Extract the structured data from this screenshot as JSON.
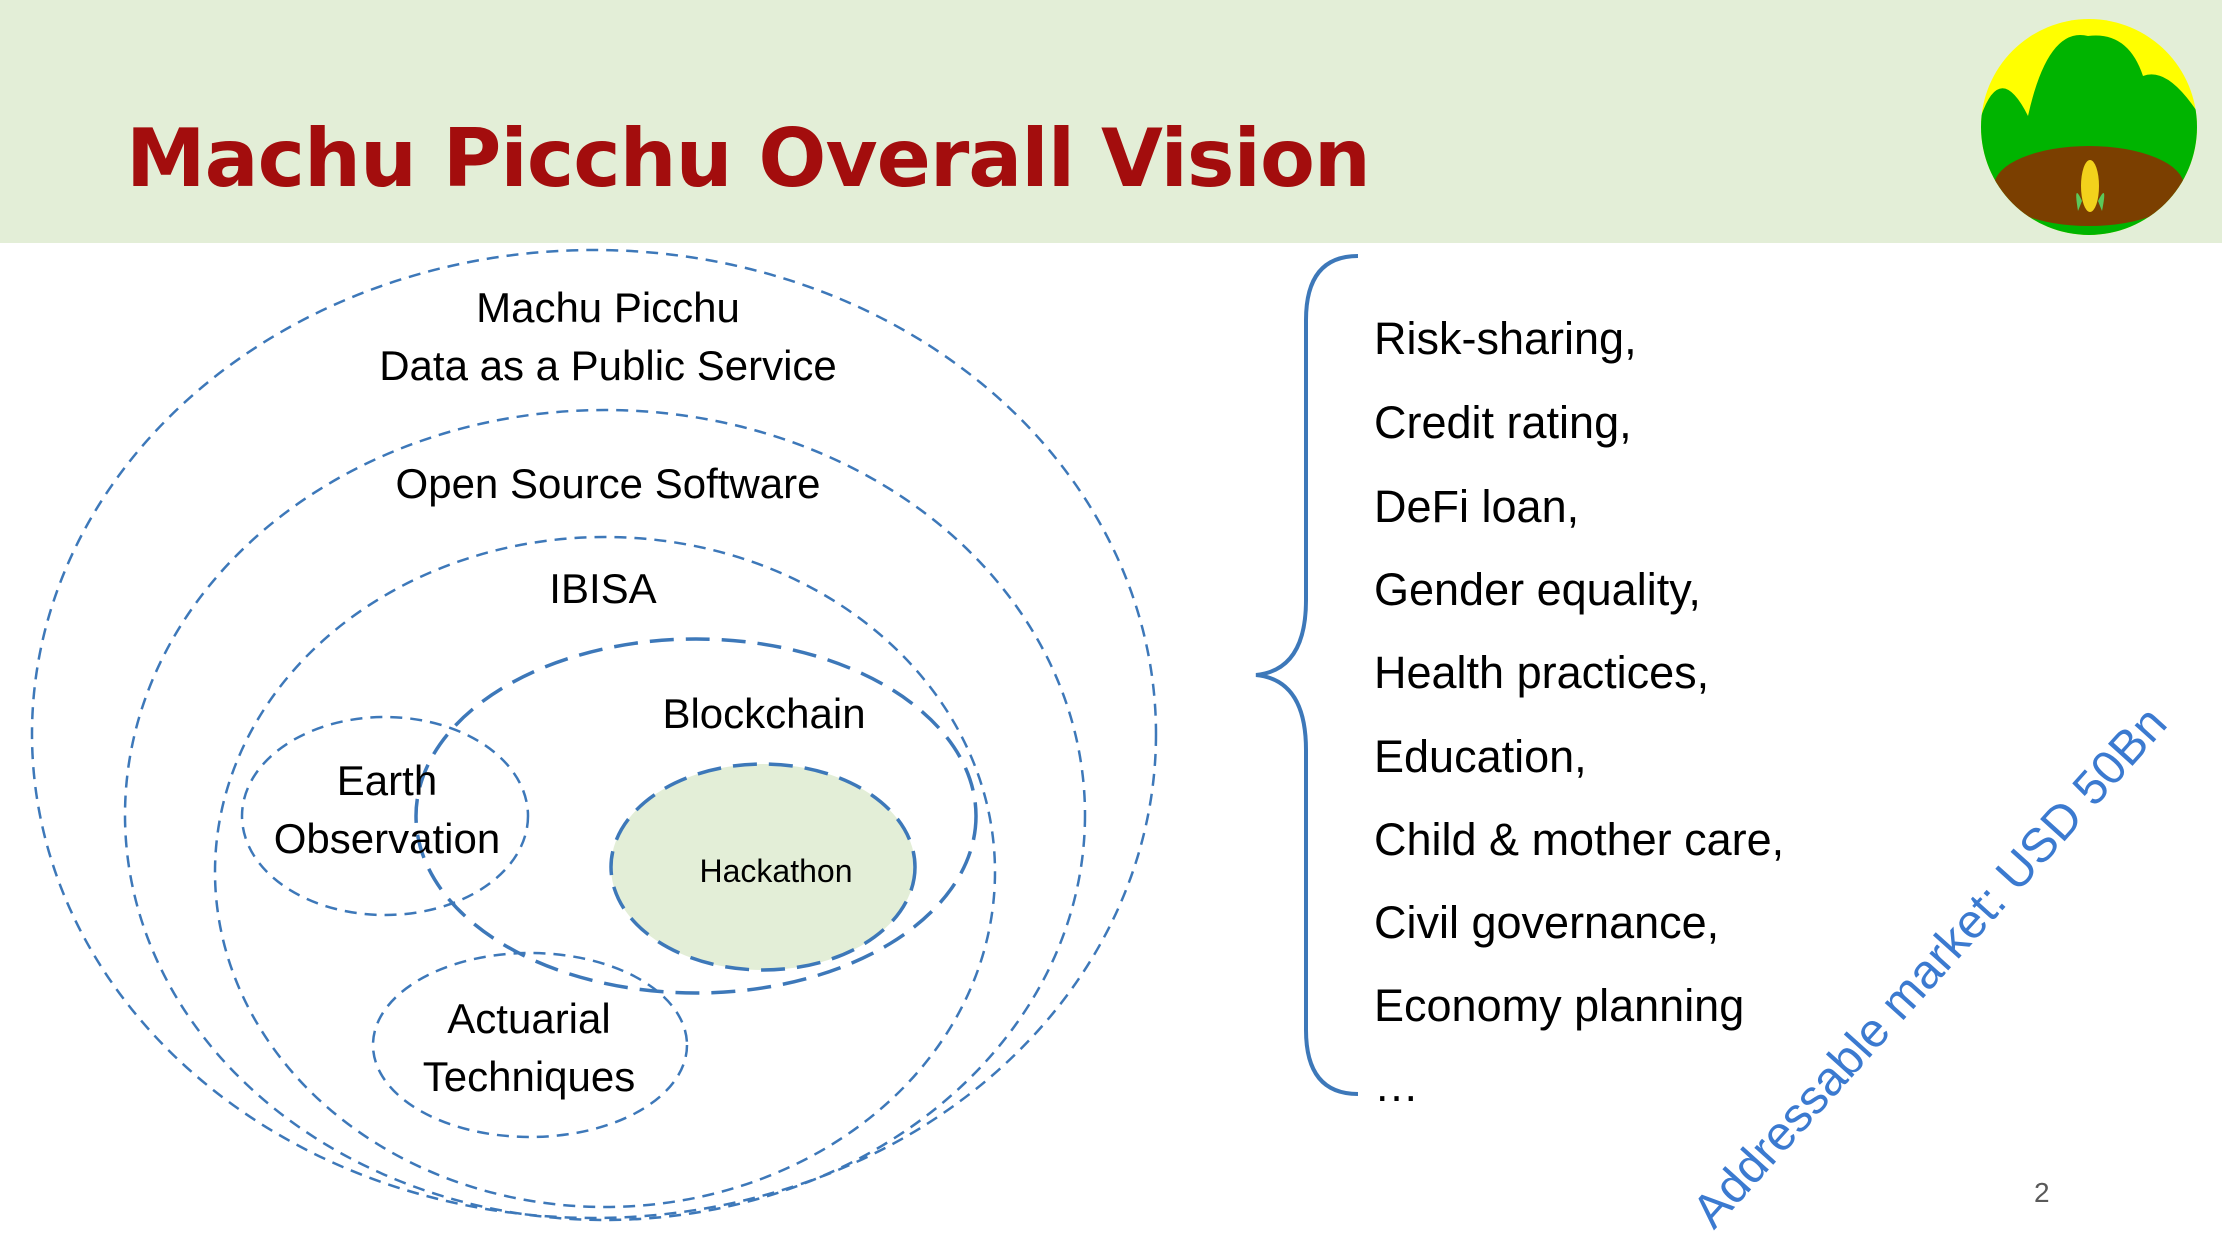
{
  "slide": {
    "title": "Machu Picchu Overall Vision",
    "page_number": "2"
  },
  "diagram": {
    "outer": {
      "line1": "Machu Picchu",
      "line2": "Data as a Public Service"
    },
    "open_source": "Open Source Software",
    "ibisa": "IBISA",
    "earth": {
      "line1": "Earth",
      "line2": "Observation"
    },
    "blockchain": "Blockchain",
    "hackathon": "Hackathon",
    "actuarial": {
      "line1": "Actuarial",
      "line2": "Techniques"
    }
  },
  "applications": [
    "Risk-sharing,",
    "Credit rating,",
    "DeFi loan,",
    "Gender equality,",
    "Health practices,",
    "Education,",
    "Child & mother care,",
    "Civil governance,",
    "Economy planning"
  ],
  "ellipsis": "…",
  "market_note": "Addressable market: USD 50Bn",
  "colors": {
    "title": "#a30d0d",
    "header_bg": "#e3eed7",
    "dashed_line": "#3d78b9",
    "hackathon_fill": "#e3eed7",
    "market_text": "#3b7ad0"
  },
  "icons": {
    "logo": "green-hills-corn-logo",
    "brace": "curly-brace-icon"
  }
}
